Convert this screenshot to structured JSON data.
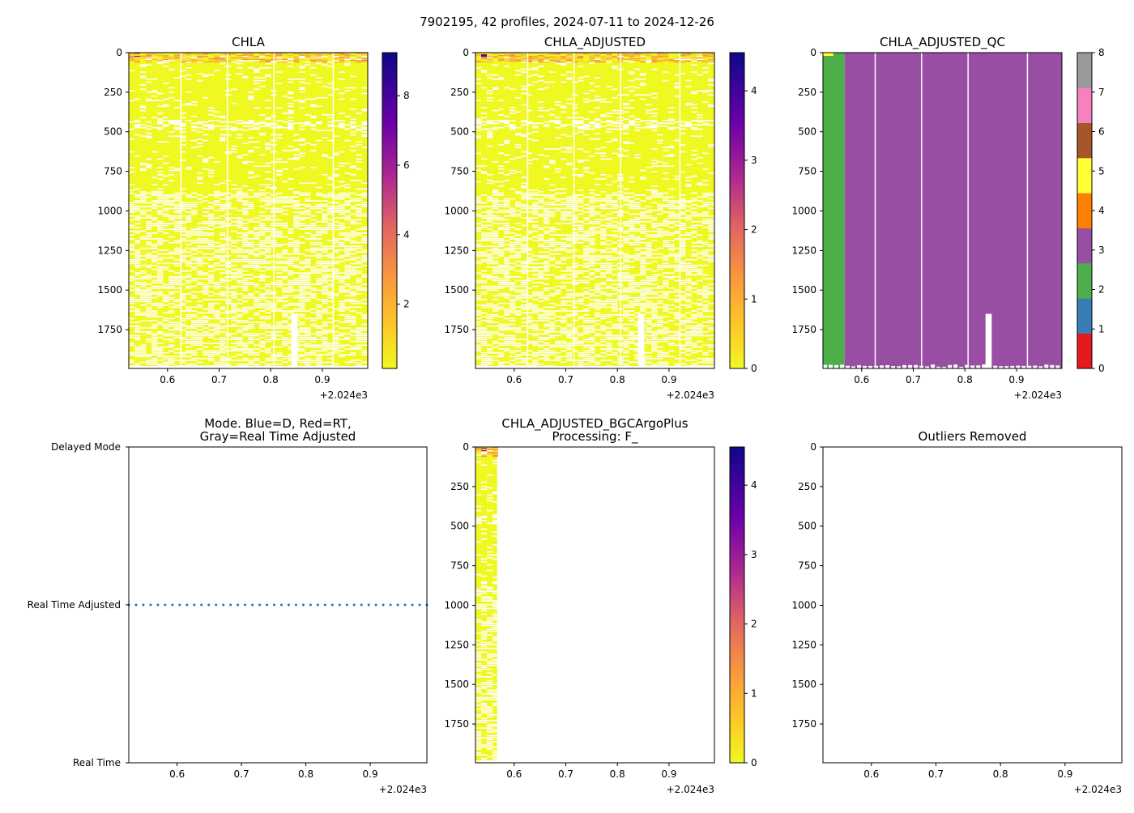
{
  "suptitle": "7902195, 42 profiles, 2024-07-11 to 2024-12-26",
  "x_offset_label": "+2.024e3",
  "chart_data": [
    {
      "id": "chla",
      "type": "heatmap",
      "title": "CHLA",
      "colormap": "plasma_r",
      "clim": [
        0.15,
        9.24
      ],
      "cbar_ticks": [
        2,
        4,
        6,
        8
      ],
      "xlim": [
        0.525,
        0.988
      ],
      "ylim": [
        1995,
        0
      ],
      "xticks": [
        0.6,
        0.7,
        0.8,
        0.9
      ],
      "yticks": [
        0,
        250,
        500,
        750,
        1000,
        1250,
        1500,
        1750
      ],
      "n_profiles": 42,
      "max_value": 9.2,
      "surface_high": true
    },
    {
      "id": "chla_adj",
      "type": "heatmap",
      "title": "CHLA_ADJUSTED",
      "colormap": "plasma_r",
      "clim": [
        0,
        4.55
      ],
      "cbar_ticks": [
        0,
        1,
        2,
        3,
        4
      ],
      "xlim": [
        0.525,
        0.988
      ],
      "ylim": [
        1995,
        0
      ],
      "xticks": [
        0.6,
        0.7,
        0.8,
        0.9
      ],
      "yticks": [
        0,
        250,
        500,
        750,
        1000,
        1250,
        1500,
        1750
      ],
      "n_profiles": 42
    },
    {
      "id": "chla_qc",
      "type": "heatmap",
      "title": "CHLA_ADJUSTED_QC",
      "colormap": "categorical",
      "clim": [
        0,
        8
      ],
      "cbar_ticks": [
        0,
        1,
        2,
        3,
        4,
        5,
        6,
        7,
        8
      ],
      "qc_colors": [
        "#e41a1c",
        "#377eb8",
        "#4daf4a",
        "#984ea3",
        "#ff7f00",
        "#ffff33",
        "#a65628",
        "#f781bf",
        "#999999"
      ],
      "xlim": [
        0.525,
        0.988
      ],
      "ylim": [
        1995,
        0
      ],
      "xticks": [
        0.6,
        0.7,
        0.8,
        0.9
      ],
      "yticks": [
        0,
        250,
        500,
        750,
        1000,
        1250,
        1500,
        1750
      ],
      "qc_segments": [
        {
          "x": [
            0.525,
            0.567
          ],
          "qc": 2
        },
        {
          "x": [
            0.567,
            0.988
          ],
          "qc": 3
        }
      ]
    },
    {
      "id": "mode",
      "type": "scatter",
      "title": "Mode. Blue=D, Red=RT,\nGray=Real Time Adjusted",
      "yticklabels": [
        "Delayed Mode",
        "Real Time Adjusted",
        "Real Time"
      ],
      "xlim": [
        0.525,
        0.988
      ],
      "xticks": [
        0.6,
        0.7,
        0.8,
        0.9
      ],
      "n_points": 42,
      "value": "Real Time Adjusted",
      "color": "#1f77b4"
    },
    {
      "id": "bgc",
      "type": "heatmap",
      "title": "CHLA_ADJUSTED_BGCArgoPlus\nProcessing: F_",
      "colormap": "plasma_r",
      "clim": [
        0,
        4.55
      ],
      "cbar_ticks": [
        0,
        1,
        2,
        3,
        4
      ],
      "xlim": [
        0.525,
        0.988
      ],
      "ylim": [
        1995,
        0
      ],
      "xticks": [
        0.6,
        0.7,
        0.8,
        0.9
      ],
      "yticks": [
        0,
        250,
        500,
        750,
        1000,
        1250,
        1500,
        1750
      ],
      "data_xrange": [
        0.525,
        0.567
      ]
    },
    {
      "id": "outliers",
      "type": "heatmap",
      "title": "Outliers Removed",
      "xlim": [
        0.525,
        0.988
      ],
      "ylim": [
        1995,
        0
      ],
      "xticks": [
        0.6,
        0.7,
        0.8,
        0.9
      ],
      "yticks": [
        0,
        250,
        500,
        750,
        1000,
        1250,
        1500,
        1750
      ],
      "empty": true
    }
  ]
}
